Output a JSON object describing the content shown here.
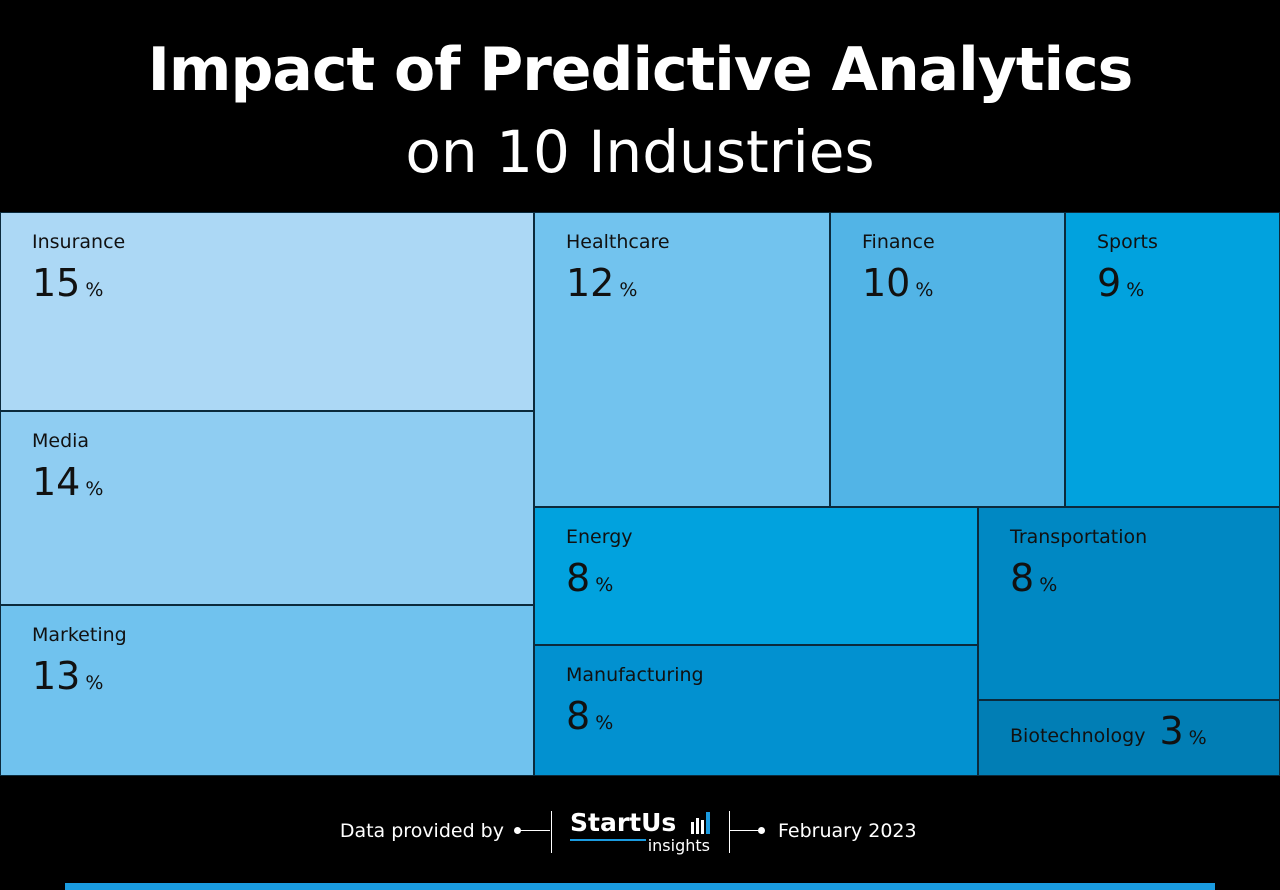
{
  "title": {
    "line1": "Impact of Predictive Analytics",
    "line2": "on 10 Industries"
  },
  "chart_data": {
    "type": "treemap",
    "unit": "%",
    "items": [
      {
        "label": "Insurance",
        "value": 15,
        "color": "#acd8f5"
      },
      {
        "label": "Media",
        "value": 14,
        "color": "#8fcdf2"
      },
      {
        "label": "Marketing",
        "value": 13,
        "color": "#70c2ee"
      },
      {
        "label": "Healthcare",
        "value": 12,
        "color": "#72c3ee"
      },
      {
        "label": "Finance",
        "value": 10,
        "color": "#52b4e6"
      },
      {
        "label": "Sports",
        "value": 9,
        "color": "#01a2de"
      },
      {
        "label": "Energy",
        "value": 8,
        "color": "#01a2de"
      },
      {
        "label": "Manufacturing",
        "value": 8,
        "color": "#0291d0"
      },
      {
        "label": "Transportation",
        "value": 8,
        "color": "#0088c3"
      },
      {
        "label": "Biotechnology",
        "value": 3,
        "color": "#017eb5"
      }
    ]
  },
  "footer": {
    "provided_by": "Data provided by",
    "date": "February 2023",
    "logo_name": "StartUs",
    "logo_sub": "insights",
    "accent": "#1a9be0"
  }
}
